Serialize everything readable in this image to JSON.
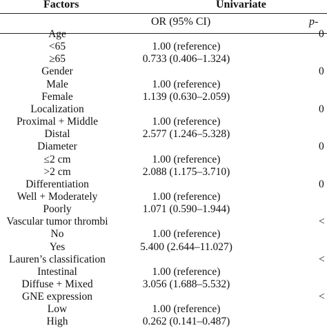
{
  "header": {
    "factors_label": "Factors",
    "univariate_label": "Univariate",
    "or_label": "OR (95% CI)",
    "p_label": "p-"
  },
  "rows": [
    {
      "factor": "Age",
      "or": "",
      "p": "0"
    },
    {
      "factor": "<65",
      "or": "1.00 (reference)",
      "p": ""
    },
    {
      "factor": "≥65",
      "or": "0.733 (0.406–1.324)",
      "p": ""
    },
    {
      "factor": "Gender",
      "or": "",
      "p": "0"
    },
    {
      "factor": "Male",
      "or": "1.00 (reference)",
      "p": ""
    },
    {
      "factor": "Female",
      "or": "1.139 (0.630–2.059)",
      "p": ""
    },
    {
      "factor": "Localization",
      "or": "",
      "p": "0"
    },
    {
      "factor": "Proximal + Middle",
      "or": "1.00 (reference)",
      "p": ""
    },
    {
      "factor": "Distal",
      "or": "2.577 (1.246–5.328)",
      "p": ""
    },
    {
      "factor": "Diameter",
      "or": "",
      "p": "0"
    },
    {
      "factor": "≤2 cm",
      "or": "1.00 (reference)",
      "p": ""
    },
    {
      "factor": ">2 cm",
      "or": "2.088 (1.175–3.710)",
      "p": ""
    },
    {
      "factor": "Differentiation",
      "or": "",
      "p": "0"
    },
    {
      "factor": "Well + Moderately",
      "or": "1.00 (reference)",
      "p": ""
    },
    {
      "factor": "Poorly",
      "or": "1.071 (0.590–1.944)",
      "p": ""
    },
    {
      "factor": "Vascular tumor thrombi",
      "or": "",
      "p": "<"
    },
    {
      "factor": "No",
      "or": "1.00 (reference)",
      "p": ""
    },
    {
      "factor": "Yes",
      "or": "5.400 (2.644–11.027)",
      "p": ""
    },
    {
      "factor": "Lauren’s classification",
      "or": "",
      "p": "<"
    },
    {
      "factor": "Intestinal",
      "or": "1.00 (reference)",
      "p": ""
    },
    {
      "factor": "Diffuse + Mixed",
      "or": "3.056 (1.688–5.532)",
      "p": ""
    },
    {
      "factor": "GNE expression",
      "or": "",
      "p": "<"
    },
    {
      "factor": "Low",
      "or": "1.00 (reference)",
      "p": ""
    },
    {
      "factor": "High",
      "or": "0.262 (0.141–0.487)",
      "p": ""
    }
  ]
}
